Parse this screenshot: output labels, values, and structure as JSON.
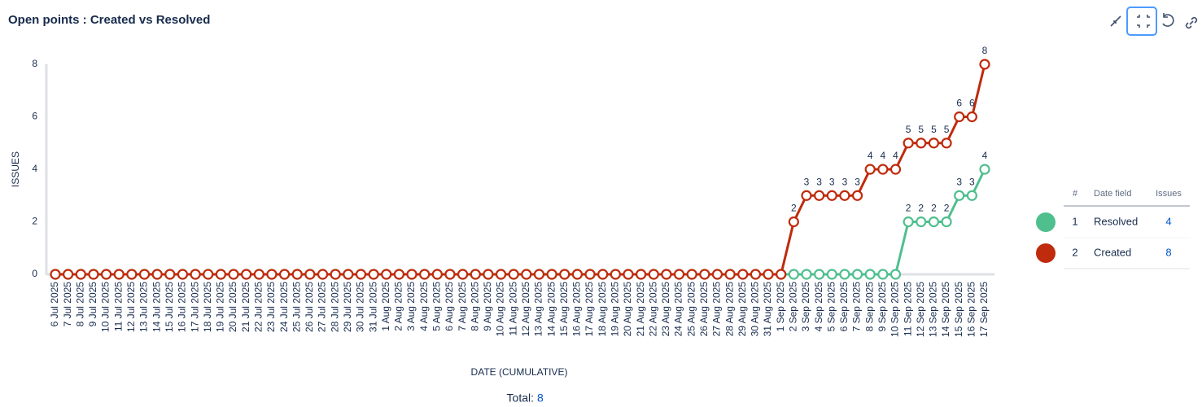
{
  "chart_data": {
    "type": "line",
    "title": "Open points : Created vs Resolved",
    "y_label": "ISSUES",
    "x_label": "DATE (CUMULATIVE)",
    "categories": [
      "6 Jul 2025",
      "7 Jul 2025",
      "8 Jul 2025",
      "9 Jul 2025",
      "10 Jul 2025",
      "11 Jul 2025",
      "12 Jul 2025",
      "13 Jul 2025",
      "14 Jul 2025",
      "15 Jul 2025",
      "16 Jul 2025",
      "17 Jul 2025",
      "18 Jul 2025",
      "19 Jul 2025",
      "20 Jul 2025",
      "21 Jul 2025",
      "22 Jul 2025",
      "23 Jul 2025",
      "24 Jul 2025",
      "25 Jul 2025",
      "26 Jul 2025",
      "27 Jul 2025",
      "28 Jul 2025",
      "29 Jul 2025",
      "30 Jul 2025",
      "31 Jul 2025",
      "1 Aug 2025",
      "2 Aug 2025",
      "3 Aug 2025",
      "4 Aug 2025",
      "5 Aug 2025",
      "6 Aug 2025",
      "7 Aug 2025",
      "8 Aug 2025",
      "9 Aug 2025",
      "10 Aug 2025",
      "11 Aug 2025",
      "12 Aug 2025",
      "13 Aug 2025",
      "14 Aug 2025",
      "15 Aug 2025",
      "16 Aug 2025",
      "17 Aug 2025",
      "18 Aug 2025",
      "19 Aug 2025",
      "20 Aug 2025",
      "21 Aug 2025",
      "22 Aug 2025",
      "23 Aug 2025",
      "24 Aug 2025",
      "25 Aug 2025",
      "26 Aug 2025",
      "27 Aug 2025",
      "28 Aug 2025",
      "29 Aug 2025",
      "30 Aug 2025",
      "31 Aug 2025",
      "1 Sep 2025",
      "2 Sep 2025",
      "3 Sep 2025",
      "4 Sep 2025",
      "5 Sep 2025",
      "6 Sep 2025",
      "7 Sep 2025",
      "8 Sep 2025",
      "9 Sep 2025",
      "10 Sep 2025",
      "11 Sep 2025",
      "12 Sep 2025",
      "13 Sep 2025",
      "14 Sep 2025",
      "15 Sep 2025",
      "16 Sep 2025",
      "17 Sep 2025"
    ],
    "series": [
      {
        "name": "Resolved",
        "color": "#4fbf8e",
        "values": [
          0,
          0,
          0,
          0,
          0,
          0,
          0,
          0,
          0,
          0,
          0,
          0,
          0,
          0,
          0,
          0,
          0,
          0,
          0,
          0,
          0,
          0,
          0,
          0,
          0,
          0,
          0,
          0,
          0,
          0,
          0,
          0,
          0,
          0,
          0,
          0,
          0,
          0,
          0,
          0,
          0,
          0,
          0,
          0,
          0,
          0,
          0,
          0,
          0,
          0,
          0,
          0,
          0,
          0,
          0,
          0,
          0,
          0,
          0,
          0,
          0,
          0,
          0,
          0,
          0,
          0,
          0,
          2,
          2,
          2,
          2,
          3,
          3,
          4
        ]
      },
      {
        "name": "Created",
        "color": "#bf2b0c",
        "values": [
          0,
          0,
          0,
          0,
          0,
          0,
          0,
          0,
          0,
          0,
          0,
          0,
          0,
          0,
          0,
          0,
          0,
          0,
          0,
          0,
          0,
          0,
          0,
          0,
          0,
          0,
          0,
          0,
          0,
          0,
          0,
          0,
          0,
          0,
          0,
          0,
          0,
          0,
          0,
          0,
          0,
          0,
          0,
          0,
          0,
          0,
          0,
          0,
          0,
          0,
          0,
          0,
          0,
          0,
          0,
          0,
          0,
          0,
          2,
          3,
          3,
          3,
          3,
          3,
          4,
          4,
          4,
          5,
          5,
          5,
          5,
          6,
          6,
          8
        ]
      }
    ],
    "ylim": [
      0,
      8
    ],
    "yticks": [
      0,
      2,
      4,
      6,
      8
    ],
    "show_zero_labels": false,
    "legend_table": {
      "headers": [
        "#",
        "Date field",
        "Issues"
      ],
      "rows": [
        [
          "1",
          "Resolved",
          "4"
        ],
        [
          "2",
          "Created",
          "8"
        ]
      ]
    },
    "total_label": "Total:",
    "total_value": "8"
  }
}
